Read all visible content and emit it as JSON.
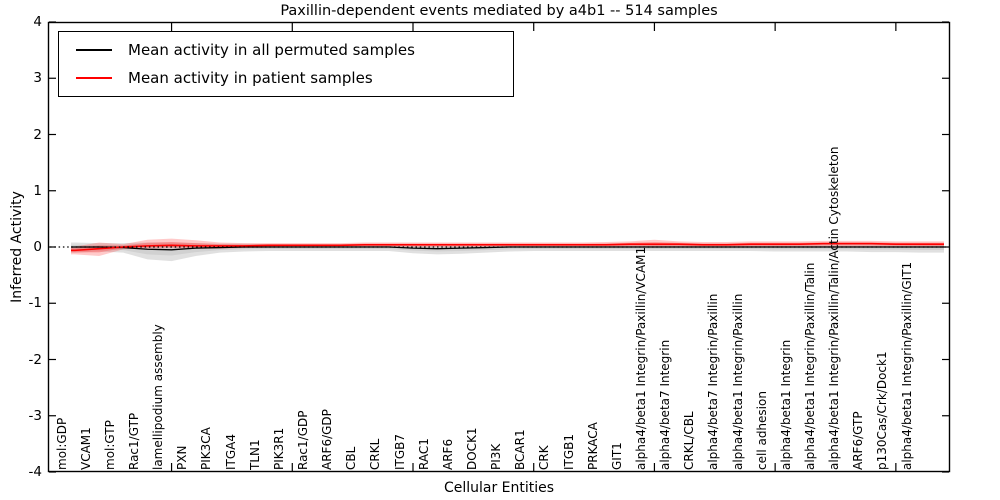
{
  "figure": {
    "title": "Paxillin-dependent events mediated by a4b1 -- 514 samples",
    "xlabel": "Cellular Entities",
    "ylabel": "Inferred Activity"
  },
  "legend": {
    "position": "upper left",
    "entries": [
      {
        "label": "Mean activity in all permuted samples",
        "color": "#000000"
      },
      {
        "label": "Mean activity in patient samples",
        "color": "#ff0000"
      }
    ]
  },
  "chart_data": {
    "type": "line",
    "title": "Paxillin-dependent events mediated by a4b1 -- 514 samples",
    "xlabel": "Cellular Entities",
    "ylabel": "Inferred Activity",
    "ylim": [
      -4,
      4
    ],
    "yticks": [
      "4",
      "3",
      "2",
      "1",
      "0",
      "-1",
      "-2",
      "-3",
      "-4"
    ],
    "grid": false,
    "zero_line": "dotted",
    "legend_position": "upper left",
    "categories": [
      "mol:GDP",
      "VCAM1",
      "mol:GTP",
      "Rac1/GTP",
      "lamellipodium assembly",
      "PXN",
      "PIK3CA",
      "ITGA4",
      "TLN1",
      "PIK3R1",
      "Rac1/GDP",
      "ARF6/GDP",
      "CBL",
      "CRKL",
      "ITGB7",
      "RAC1",
      "ARF6",
      "DOCK1",
      "PI3K",
      "BCAR1",
      "CRK",
      "ITGB1",
      "PRKACA",
      "GIT1",
      "alpha4/beta1 Integrin/Paxillin/VCAM1",
      "alpha4/beta7 Integrin",
      "CRKL/CBL",
      "alpha4/beta7 Integrin/Paxillin",
      "alpha4/beta1 Integrin/Paxillin",
      "cell adhesion",
      "alpha4/beta1 Integrin",
      "alpha4/beta1 Integrin/Paxillin/Talin",
      "alpha4/beta1 Integrin/Paxillin/Talin/Actin Cytoskeleton",
      "ARF6/GTP",
      "p130Cas/Crk/Dock1",
      "alpha4/beta1 Integrin/Paxillin/GIT1"
    ],
    "series": [
      {
        "name": "Mean activity in all permuted samples",
        "color": "#000000",
        "band_color": "#999999",
        "mean": [
          0,
          0,
          -0.01,
          -0.04,
          -0.05,
          -0.02,
          -0.01,
          0,
          0,
          0,
          0,
          0,
          0,
          0,
          -0.02,
          -0.03,
          -0.02,
          -0.01,
          0,
          0,
          0,
          0,
          0,
          0,
          0,
          0,
          0,
          0,
          0,
          0,
          0,
          0,
          0,
          0,
          0,
          0
        ],
        "band_lo": [
          -0.1,
          -0.08,
          -0.1,
          -0.22,
          -0.25,
          -0.16,
          -0.1,
          -0.08,
          -0.07,
          -0.07,
          -0.07,
          -0.07,
          -0.07,
          -0.07,
          -0.11,
          -0.13,
          -0.12,
          -0.1,
          -0.08,
          -0.07,
          -0.07,
          -0.07,
          -0.07,
          -0.07,
          -0.07,
          -0.07,
          -0.07,
          -0.07,
          -0.07,
          -0.08,
          -0.08,
          -0.08,
          -0.08,
          -0.09,
          -0.09,
          -0.1
        ],
        "band_hi": [
          0.08,
          0.07,
          0.07,
          0.08,
          0.08,
          0.07,
          0.06,
          0.06,
          0.05,
          0.05,
          0.05,
          0.05,
          0.05,
          0.05,
          0.05,
          0.05,
          0.05,
          0.05,
          0.05,
          0.05,
          0.05,
          0.05,
          0.05,
          0.05,
          0.05,
          0.05,
          0.05,
          0.05,
          0.05,
          0.05,
          0.05,
          0.05,
          0.05,
          0.05,
          0.05,
          0.05
        ]
      },
      {
        "name": "Mean activity in patient samples",
        "color": "#ff0000",
        "band_color": "#ff2a2a",
        "mean": [
          -0.06,
          -0.03,
          0.0,
          0.02,
          0.03,
          0.02,
          0.02,
          0.02,
          0.03,
          0.03,
          0.03,
          0.03,
          0.04,
          0.04,
          0.04,
          0.04,
          0.04,
          0.04,
          0.04,
          0.04,
          0.04,
          0.04,
          0.04,
          0.05,
          0.05,
          0.05,
          0.04,
          0.04,
          0.05,
          0.05,
          0.05,
          0.06,
          0.06,
          0.06,
          0.05,
          0.05
        ],
        "band_lo": [
          -0.13,
          -0.16,
          -0.04,
          -0.03,
          -0.02,
          -0.03,
          -0.03,
          -0.02,
          -0.01,
          0.0,
          0.0,
          0.0,
          0.0,
          0.0,
          0.0,
          0.0,
          0.0,
          0.0,
          0.0,
          0.0,
          0.0,
          0.0,
          0.0,
          0.0,
          -0.01,
          0.0,
          0.0,
          0.0,
          0.0,
          0.0,
          0.01,
          0.01,
          0.01,
          0.01,
          0.01,
          0.0
        ],
        "band_hi": [
          0.01,
          0.08,
          0.05,
          0.13,
          0.15,
          0.12,
          0.08,
          0.07,
          0.07,
          0.07,
          0.07,
          0.07,
          0.08,
          0.08,
          0.08,
          0.08,
          0.08,
          0.08,
          0.08,
          0.08,
          0.08,
          0.08,
          0.09,
          0.1,
          0.13,
          0.1,
          0.09,
          0.09,
          0.1,
          0.1,
          0.1,
          0.11,
          0.11,
          0.11,
          0.1,
          0.1
        ]
      }
    ]
  }
}
